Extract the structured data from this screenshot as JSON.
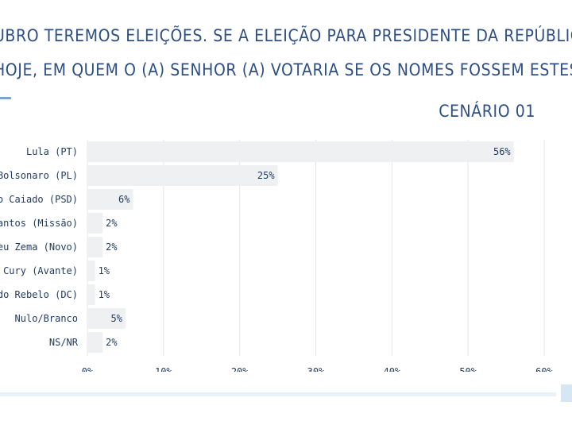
{
  "question": {
    "line1": "UBRO TEREMOS ELEIÇÕES. SE A ELEIÇÃO PARA PRESIDENTE DA REPÚBLICA",
    "line2": "HOJE, EM QUEM O (A) SENHOR (A) VOTARIA SE OS NOMES FOSSEM ESTES?"
  },
  "scenario_label": "CENÁRIO 01",
  "colors": {
    "bar": "#eef0f2",
    "grid": "#e6e6e6",
    "text": "#1f3a5f",
    "accent": "#2d4f86"
  },
  "chart_data": {
    "type": "bar",
    "orientation": "horizontal",
    "categories": [
      "Lula (PT)",
      "io Bolsonaro (PL)",
      "aldo Caiado (PSD)",
      "o Santos (Missão)",
      "meu Zema (Novo)",
      "sto Cury (Avante)",
      "Aldo Rebelo (DC)",
      "Nulo/Branco",
      "NS/NR"
    ],
    "values": [
      56,
      25,
      6,
      2,
      2,
      1,
      1,
      5,
      2
    ],
    "value_labels": [
      "56%",
      "25%",
      "6%",
      "2%",
      "2%",
      "1%",
      "1%",
      "5%",
      "2%"
    ],
    "xlim": [
      0,
      60
    ],
    "xticks": [
      "0%",
      "10%",
      "20%",
      "30%",
      "40%",
      "50%",
      "60%"
    ],
    "xtick_values": [
      0,
      10,
      20,
      30,
      40,
      50,
      60
    ],
    "grid": true,
    "title": "CENÁRIO 01",
    "xlabel": "",
    "ylabel": ""
  }
}
